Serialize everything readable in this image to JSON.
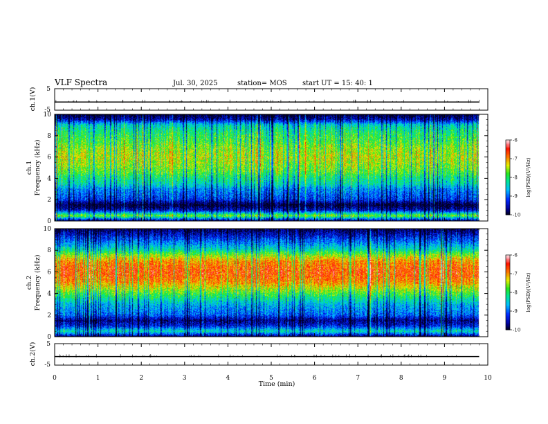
{
  "header": {
    "title": "VLF Spectra",
    "date": "Jul. 30, 2025",
    "station": "station= MOS",
    "start": "start  UT =   15: 40: 1"
  },
  "chart_data": [
    {
      "type": "line",
      "panel": "ch1-voltage",
      "ylabel": "ch.1(V)",
      "ylim": [
        -5,
        5
      ],
      "yticks": [
        "5",
        "-5"
      ],
      "x": [
        0,
        9.8
      ],
      "y": [
        -1.2,
        -1.2
      ]
    },
    {
      "type": "heatmap",
      "panel": "ch1-spectrogram",
      "ylabel_top": "ch.1",
      "ylabel": "Frequency (kHz)",
      "ylim": [
        0,
        10
      ],
      "yticks": [
        "0",
        "2",
        "4",
        "6",
        "8",
        "10"
      ],
      "xlim": [
        0,
        9.8
      ],
      "colorbar": {
        "label": "log(PSD)(V²/Hz)",
        "range": [
          -10,
          -6
        ],
        "ticks": [
          "-6",
          "-7",
          "-8",
          "-9",
          "-10"
        ]
      },
      "band_profile_freq_khz": [
        0,
        0.5,
        1,
        1.5,
        2,
        2.5,
        3,
        3.5,
        4,
        4.5,
        5,
        5.5,
        6,
        6.5,
        7,
        7.5,
        8,
        8.5,
        9,
        9.5,
        10
      ],
      "band_profile_log_psd": [
        -9.8,
        -7.6,
        -9.4,
        -10,
        -9.2,
        -9.0,
        -8.8,
        -8.3,
        -8.1,
        -7.8,
        -7.6,
        -7.5,
        -7.4,
        -7.5,
        -7.6,
        -7.8,
        -7.9,
        -8.1,
        -8.4,
        -9.5,
        -10
      ]
    },
    {
      "type": "heatmap",
      "panel": "ch2-spectrogram",
      "ylabel_top": "ch.2",
      "ylabel": "Frequency (kHz)",
      "ylim": [
        0,
        10
      ],
      "yticks": [
        "0",
        "2",
        "4",
        "6",
        "8",
        "10"
      ],
      "xlim": [
        0,
        9.8
      ],
      "colorbar": {
        "label": "log(PSD)(V²/Hz)",
        "range": [
          -10,
          -6
        ],
        "ticks": [
          "-6",
          "-7",
          "-8",
          "-9",
          "-10"
        ]
      },
      "band_profile_freq_khz": [
        0,
        0.5,
        1,
        1.5,
        2,
        2.5,
        3,
        3.5,
        4,
        4.5,
        5,
        5.5,
        6,
        6.5,
        7,
        7.5,
        8,
        8.5,
        9,
        9.5,
        10
      ],
      "band_profile_log_psd": [
        -9.8,
        -8.3,
        -9.3,
        -9.7,
        -9.0,
        -8.8,
        -8.6,
        -8.2,
        -7.8,
        -7.4,
        -7.0,
        -6.8,
        -6.7,
        -6.8,
        -7.0,
        -7.5,
        -8.2,
        -8.7,
        -9.1,
        -9.5,
        -9.9
      ]
    },
    {
      "type": "line",
      "panel": "ch2-voltage",
      "ylabel": "ch.2(V)",
      "ylim": [
        -5,
        5
      ],
      "yticks": [
        "5",
        "-5"
      ],
      "x": [
        0,
        9.8
      ],
      "y": [
        -1.0,
        -1.0
      ]
    }
  ],
  "x_axis": {
    "label": "Time (min)",
    "range": [
      0,
      10
    ],
    "ticks": [
      "0",
      "1",
      "2",
      "3",
      "4",
      "5",
      "6",
      "7",
      "8",
      "9",
      "10"
    ]
  }
}
